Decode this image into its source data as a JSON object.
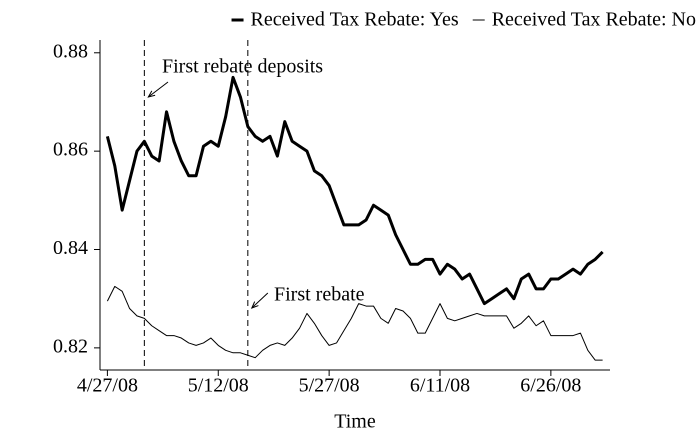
{
  "chart_data": {
    "type": "line",
    "x_label": "Time",
    "x": [
      "4/27/08",
      "4/28/08",
      "4/29/08",
      "4/30/08",
      "5/1/08",
      "5/2/08",
      "5/3/08",
      "5/4/08",
      "5/5/08",
      "5/6/08",
      "5/7/08",
      "5/8/08",
      "5/9/08",
      "5/10/08",
      "5/11/08",
      "5/12/08",
      "5/13/08",
      "5/14/08",
      "5/15/08",
      "5/16/08",
      "5/17/08",
      "5/18/08",
      "5/19/08",
      "5/20/08",
      "5/21/08",
      "5/22/08",
      "5/23/08",
      "5/24/08",
      "5/25/08",
      "5/26/08",
      "5/27/08",
      "5/28/08",
      "5/29/08",
      "5/30/08",
      "5/31/08",
      "6/1/08",
      "6/2/08",
      "6/3/08",
      "6/4/08",
      "6/5/08",
      "6/6/08",
      "6/7/08",
      "6/8/08",
      "6/9/08",
      "6/10/08",
      "6/11/08",
      "6/12/08",
      "6/13/08",
      "6/14/08",
      "6/15/08",
      "6/16/08",
      "6/17/08",
      "6/18/08",
      "6/19/08",
      "6/20/08",
      "6/21/08",
      "6/22/08",
      "6/23/08",
      "6/24/08",
      "6/25/08",
      "6/26/08",
      "6/27/08",
      "6/28/08",
      "6/29/08",
      "6/30/08",
      "7/1/08",
      "7/2/08",
      "7/3/08"
    ],
    "series": [
      {
        "name": "Received Tax Rebate: Yes",
        "color": "#000000",
        "linewidth": 3,
        "values": [
          0.863,
          0.857,
          0.848,
          0.854,
          0.86,
          0.862,
          0.859,
          0.858,
          0.868,
          0.862,
          0.858,
          0.855,
          0.855,
          0.861,
          0.862,
          0.861,
          0.867,
          0.875,
          0.871,
          0.865,
          0.863,
          0.862,
          0.863,
          0.859,
          0.866,
          0.862,
          0.861,
          0.86,
          0.856,
          0.855,
          0.853,
          0.849,
          0.845,
          0.845,
          0.845,
          0.846,
          0.849,
          0.848,
          0.847,
          0.843,
          0.84,
          0.837,
          0.837,
          0.838,
          0.838,
          0.835,
          0.837,
          0.836,
          0.834,
          0.835,
          0.832,
          0.829,
          0.83,
          0.831,
          0.832,
          0.83,
          0.834,
          0.835,
          0.832,
          0.832,
          0.834,
          0.834,
          0.835,
          0.836,
          0.835,
          0.837,
          0.838,
          0.8395
        ]
      },
      {
        "name": "Received Tax Rebate: No",
        "color": "#000000",
        "linewidth": 1,
        "values": [
          0.8295,
          0.8325,
          0.8315,
          0.828,
          0.8265,
          0.826,
          0.8245,
          0.8235,
          0.8225,
          0.8225,
          0.822,
          0.821,
          0.8205,
          0.821,
          0.822,
          0.8205,
          0.8195,
          0.819,
          0.819,
          0.8185,
          0.818,
          0.8195,
          0.8205,
          0.821,
          0.8205,
          0.822,
          0.824,
          0.827,
          0.825,
          0.8225,
          0.8205,
          0.821,
          0.8235,
          0.826,
          0.829,
          0.8285,
          0.8285,
          0.826,
          0.825,
          0.828,
          0.8275,
          0.826,
          0.823,
          0.823,
          0.826,
          0.829,
          0.826,
          0.8255,
          0.826,
          0.8265,
          0.827,
          0.8265,
          0.8265,
          0.8265,
          0.8265,
          0.824,
          0.825,
          0.8265,
          0.8245,
          0.8255,
          0.8225,
          0.8225,
          0.8225,
          0.8225,
          0.823,
          0.8195,
          0.8175,
          0.8175
        ]
      }
    ],
    "xlim": [
      "4/26/08",
      "7/4/08"
    ],
    "xticks": [
      "4/27/08",
      "5/12/08",
      "5/27/08",
      "6/11/08",
      "6/26/08"
    ],
    "ylim": [
      0.8155,
      0.8826
    ],
    "yticks": [
      0.82,
      0.84,
      0.86,
      0.88
    ],
    "legend": "top",
    "annotations": [
      {
        "text": "First rebate deposits",
        "x": "5/2/08"
      },
      {
        "text": "First rebate",
        "x": "5/16/08"
      }
    ]
  }
}
